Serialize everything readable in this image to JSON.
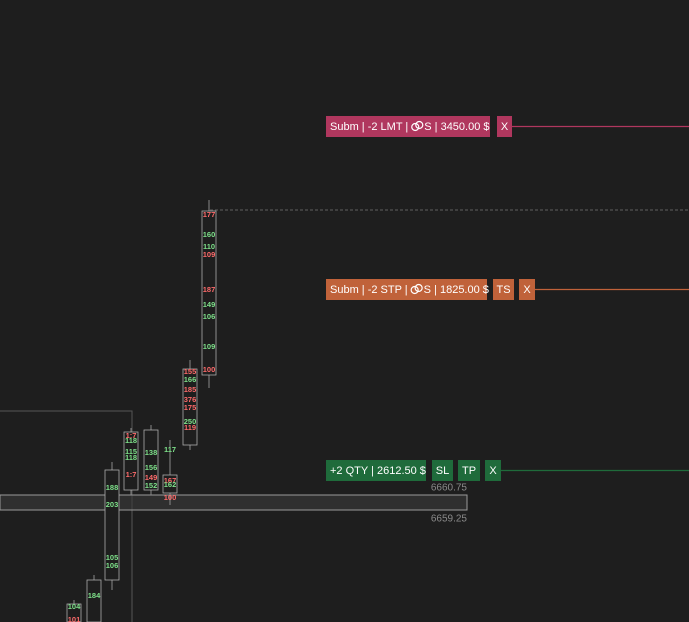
{
  "orders": [
    {
      "label_left": "Subm | -2 LMT |",
      "label_right": "S | 3450.00 $",
      "buttons": [
        "X"
      ]
    },
    {
      "label_left": "Subm | -2 STP |",
      "label_right": "S | 1825.00 $",
      "buttons": [
        "TS",
        "X"
      ]
    },
    {
      "label_left": "+2 QTY | 2612.50 $",
      "label_right": "",
      "buttons": [
        "SL",
        "TP",
        "X"
      ]
    }
  ],
  "price_labels": [
    "6660.75",
    "6659.25"
  ],
  "candles": [
    {
      "levels": [
        "104",
        "101"
      ]
    },
    {
      "levels": [
        "184"
      ]
    },
    {
      "levels": [
        "188",
        "203",
        "105",
        "106"
      ]
    },
    {
      "levels": [
        "1:7",
        "118",
        "115",
        "118",
        "1:7"
      ]
    },
    {
      "levels": [
        "138",
        "156",
        "149",
        "152"
      ]
    },
    {
      "levels": [
        "117",
        "167",
        "162",
        "100"
      ]
    },
    {
      "levels": [
        "155",
        "166",
        "185",
        "376",
        "175",
        "250",
        "119"
      ]
    },
    {
      "levels": [
        "177",
        "160",
        "110",
        "109",
        "187",
        "149",
        "106",
        "109",
        "100"
      ]
    }
  ]
}
